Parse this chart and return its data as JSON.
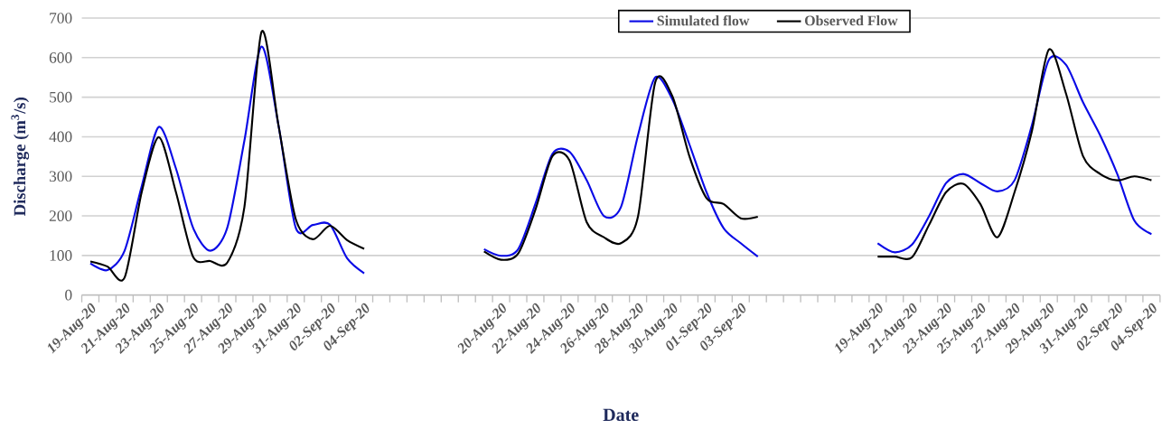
{
  "chart_data": {
    "type": "line",
    "xlabel": "Date",
    "ylabel": "Discharge (m$^{3}$/s)",
    "categories": [
      "19-Aug-20",
      null,
      "21-Aug-20",
      null,
      "23-Aug-20",
      null,
      "25-Aug-20",
      null,
      "27-Aug-20",
      null,
      "29-Aug-20",
      null,
      "31-Aug-20",
      null,
      "02-Sep-20",
      null,
      "04-Sep-20",
      null,
      null,
      null,
      null,
      null,
      null,
      null,
      "20-Aug-20",
      null,
      "22-Aug-20",
      null,
      "24-Aug-20",
      null,
      "26-Aug-20",
      null,
      "28-Aug-20",
      null,
      "30-Aug-20",
      null,
      "01-Sep-20",
      null,
      "03-Sep-20",
      null,
      null,
      null,
      null,
      null,
      null,
      null,
      "19-Aug-20",
      null,
      "21-Aug-20",
      null,
      "23-Aug-20",
      null,
      "25-Aug-20",
      null,
      "27-Aug-20",
      null,
      "29-Aug-20",
      null,
      "31-Aug-20",
      null,
      "02-Sep-20",
      null,
      "04-Sep-20"
    ],
    "series": [
      {
        "name": "Simulated flow",
        "color": "#0a0ae6",
        "values": [
          80,
          63,
          112,
          275,
          425,
          320,
          170,
          112,
          170,
          390,
          628,
          427,
          170,
          177,
          178,
          93,
          55,
          null,
          null,
          null,
          null,
          null,
          null,
          116,
          99,
          116,
          230,
          357,
          362,
          290,
          200,
          222,
          404,
          550,
          495,
          381,
          260,
          169,
          131,
          97,
          null,
          null,
          null,
          null,
          null,
          null,
          131,
          108,
          127,
          199,
          283,
          306,
          283,
          262,
          290,
          427,
          594,
          582,
          487,
          404,
          306,
          188,
          154
        ]
      },
      {
        "name": "Observed Flow",
        "color": "#000000",
        "values": [
          85,
          72,
          44,
          260,
          399,
          260,
          97,
          86,
          82,
          222,
          665,
          427,
          192,
          141,
          175,
          139,
          117,
          null,
          null,
          null,
          null,
          null,
          null,
          110,
          89,
          105,
          215,
          351,
          340,
          184,
          146,
          131,
          199,
          537,
          503,
          351,
          245,
          230,
          194,
          198,
          null,
          null,
          null,
          null,
          null,
          null,
          97,
          97,
          95,
          177,
          260,
          281,
          230,
          146,
          260,
          412,
          620,
          510,
          351,
          306,
          290,
          300,
          290
        ]
      }
    ],
    "ylim": [
      0,
      700
    ],
    "yticks": [
      0,
      100,
      200,
      300,
      400,
      500,
      600,
      700
    ],
    "grid": "y",
    "legend": "top"
  }
}
